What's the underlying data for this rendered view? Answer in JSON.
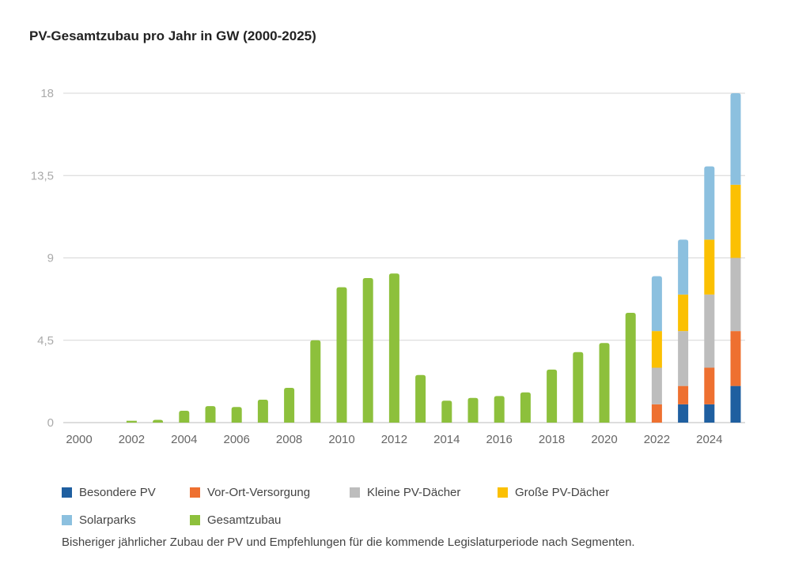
{
  "chart_data": {
    "type": "bar",
    "title": "PV-Gesamtzubau pro Jahr in GW (2000-2025)",
    "caption": "Bisheriger jährlicher Zubau der PV und Empfehlungen für die kommende Legislaturperiode nach Segmenten.",
    "xlabel": "",
    "ylabel": "",
    "ylim": [
      0,
      18
    ],
    "yticks": [
      "0",
      "4,5",
      "9",
      "13,5",
      "18"
    ],
    "ytick_values": [
      0,
      4.5,
      9,
      13.5,
      18
    ],
    "xticks": [
      "2000",
      "2002",
      "2004",
      "2006",
      "2008",
      "2010",
      "2012",
      "2014",
      "2016",
      "2018",
      "2020",
      "2022",
      "2024"
    ],
    "grid": true,
    "stacked": true,
    "legend_placement": "bottom",
    "categories": [
      2000,
      2001,
      2002,
      2003,
      2004,
      2005,
      2006,
      2007,
      2008,
      2009,
      2010,
      2011,
      2012,
      2013,
      2014,
      2015,
      2016,
      2017,
      2018,
      2019,
      2020,
      2021,
      2022,
      2023,
      2024,
      2025
    ],
    "series": [
      {
        "name": "Besondere PV",
        "color": "#1f5fa0",
        "values": [
          0,
          0,
          0,
          0,
          0,
          0,
          0,
          0,
          0,
          0,
          0,
          0,
          0,
          0,
          0,
          0,
          0,
          0,
          0,
          0,
          0,
          0,
          0,
          1,
          1,
          2
        ]
      },
      {
        "name": "Vor-Ort-Versorgung",
        "color": "#ee7030",
        "values": [
          0,
          0,
          0,
          0,
          0,
          0,
          0,
          0,
          0,
          0,
          0,
          0,
          0,
          0,
          0,
          0,
          0,
          0,
          0,
          0,
          0,
          0,
          1,
          1,
          2,
          3
        ]
      },
      {
        "name": "Kleine PV-Dächer",
        "color": "#bdbdbd",
        "values": [
          0,
          0,
          0,
          0,
          0,
          0,
          0,
          0,
          0,
          0,
          0,
          0,
          0,
          0,
          0,
          0,
          0,
          0,
          0,
          0,
          0,
          0,
          2,
          3,
          4,
          4
        ]
      },
      {
        "name": "Große PV-Dächer",
        "color": "#fbc002",
        "values": [
          0,
          0,
          0,
          0,
          0,
          0,
          0,
          0,
          0,
          0,
          0,
          0,
          0,
          0,
          0,
          0,
          0,
          0,
          0,
          0,
          0,
          0,
          2,
          2,
          3,
          4
        ]
      },
      {
        "name": "Solarparks",
        "color": "#8cc0df",
        "values": [
          0,
          0,
          0,
          0,
          0,
          0,
          0,
          0,
          0,
          0,
          0,
          0,
          0,
          0,
          0,
          0,
          0,
          0,
          0,
          0,
          0,
          0,
          3,
          3,
          4,
          5
        ]
      },
      {
        "name": "Gesamtzubau",
        "color": "#8dc03c",
        "values": [
          0,
          0,
          0.1,
          0.15,
          0.65,
          0.9,
          0.85,
          1.25,
          1.9,
          4.5,
          7.4,
          7.9,
          8.15,
          2.6,
          1.2,
          1.35,
          1.45,
          1.65,
          2.9,
          3.85,
          4.35,
          6.0,
          0,
          0,
          0,
          0
        ]
      }
    ]
  }
}
